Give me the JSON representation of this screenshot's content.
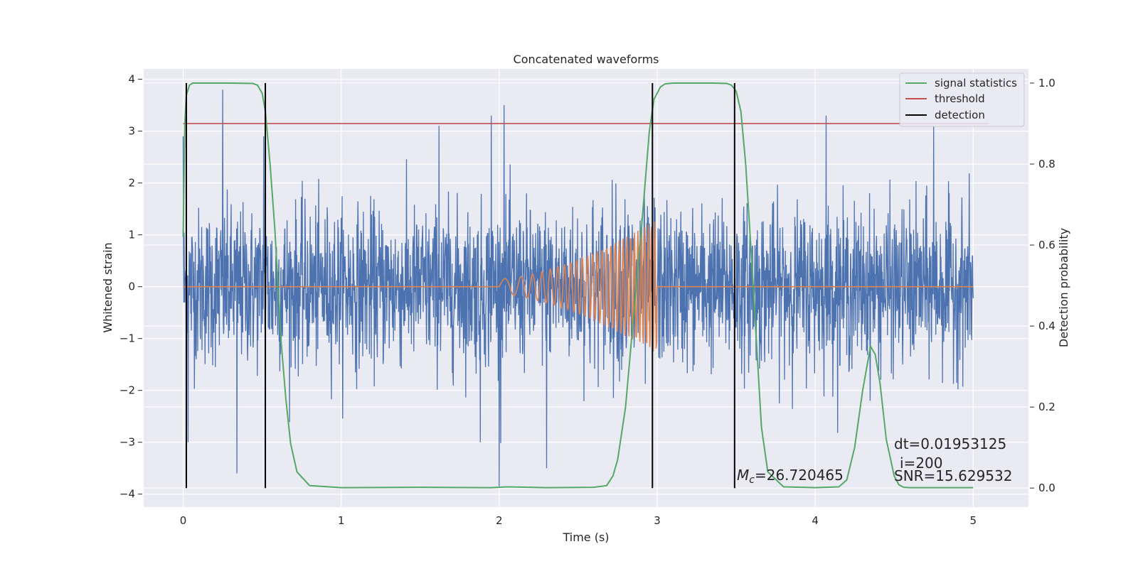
{
  "chart_data": {
    "type": "line",
    "title": "Concatenated waveforms",
    "xlabel": "Time (s)",
    "ylabel": "Whitened strain",
    "ylabel_right": "Detection probability",
    "xlim": [
      -0.25,
      5.35
    ],
    "ylim": [
      -4.25,
      4.2
    ],
    "ylim_right": [
      -0.047,
      1.035
    ],
    "xticks": [
      0,
      1,
      2,
      3,
      4,
      5
    ],
    "yticks": [
      -4,
      -3,
      -2,
      -1,
      0,
      1,
      2,
      3,
      4
    ],
    "yticks_right": [
      0.0,
      0.2,
      0.4,
      0.6,
      0.8,
      1.0
    ],
    "grid": true,
    "legend_placement": "top-right",
    "series": [
      {
        "name": "signal statistics",
        "color": "#55a868",
        "axis": "right",
        "x": [
          0.0,
          0.01,
          0.02,
          0.04,
          0.06,
          0.1,
          0.2,
          0.3,
          0.44,
          0.47,
          0.5,
          0.52,
          0.55,
          0.58,
          0.6,
          0.62,
          0.65,
          0.68,
          0.72,
          0.8,
          1.0,
          1.5,
          1.95,
          2.05,
          2.3,
          2.6,
          2.68,
          2.72,
          2.75,
          2.8,
          2.85,
          2.9,
          2.95,
          2.98,
          3.02,
          3.05,
          3.1,
          3.2,
          3.35,
          3.44,
          3.47,
          3.5,
          3.53,
          3.56,
          3.6,
          3.63,
          3.66,
          3.7,
          3.8,
          4.0,
          4.15,
          4.2,
          4.25,
          4.3,
          4.35,
          4.38,
          4.41,
          4.45,
          4.5,
          4.53,
          4.56,
          4.6,
          4.7,
          5.0
        ],
        "y": [
          0.62,
          0.9,
          0.97,
          0.995,
          1.0,
          1.0,
          1.0,
          1.0,
          0.999,
          0.995,
          0.975,
          0.93,
          0.8,
          0.64,
          0.5,
          0.36,
          0.22,
          0.11,
          0.04,
          0.006,
          0.001,
          0.002,
          0.001,
          0.003,
          0.001,
          0.002,
          0.006,
          0.03,
          0.07,
          0.2,
          0.42,
          0.64,
          0.88,
          0.96,
          0.99,
          0.998,
          1.0,
          1.0,
          1.0,
          0.999,
          0.995,
          0.98,
          0.93,
          0.8,
          0.55,
          0.35,
          0.15,
          0.04,
          0.003,
          0.001,
          0.003,
          0.02,
          0.1,
          0.24,
          0.35,
          0.33,
          0.26,
          0.12,
          0.03,
          0.008,
          0.002,
          0.001,
          0.001,
          0.001
        ]
      },
      {
        "name": "threshold",
        "color": "#c44e52",
        "axis": "right",
        "x": [
          0.0,
          5.1
        ],
        "y": [
          0.9,
          0.9
        ]
      },
      {
        "name": "detection",
        "color": "#000000",
        "axis": "right",
        "x": [
          0.02,
          0.52,
          2.97,
          3.49
        ],
        "y_range": [
          0.0,
          1.0
        ]
      },
      {
        "name": "",
        "color": "#4c72b0",
        "axis": "left",
        "kind": "noise",
        "x_range": [
          0.0,
          5.0
        ],
        "std": 0.75,
        "spikes": [
          {
            "x": 0.25,
            "y": 3.8
          },
          {
            "x": 0.34,
            "y": -3.6
          },
          {
            "x": 1.62,
            "y": 3.1
          },
          {
            "x": 1.88,
            "y": -3.0
          },
          {
            "x": 1.95,
            "y": 3.3
          },
          {
            "x": 2.0,
            "y": -3.85
          },
          {
            "x": 2.03,
            "y": 3.5
          },
          {
            "x": 2.3,
            "y": -3.5
          },
          {
            "x": 4.07,
            "y": 3.3
          },
          {
            "x": 4.75,
            "y": 3.1
          },
          {
            "x": 0.0,
            "y": 2.9
          },
          {
            "x": 0.51,
            "y": 2.9
          },
          {
            "x": 0.03,
            "y": -3.0
          }
        ]
      },
      {
        "name": "",
        "color": "#dd8452",
        "axis": "left",
        "kind": "chirp",
        "start": 2.0,
        "end": 3.0,
        "x_range": [
          0.0,
          5.0
        ]
      }
    ],
    "annotations": [
      {
        "text_main": "M",
        "text_sub": "c",
        "text_rest": "=26.720465"
      },
      {
        "text": "dt=0.01953125"
      },
      {
        "text": "i=200"
      },
      {
        "text": "SNR=15.629532"
      }
    ]
  }
}
